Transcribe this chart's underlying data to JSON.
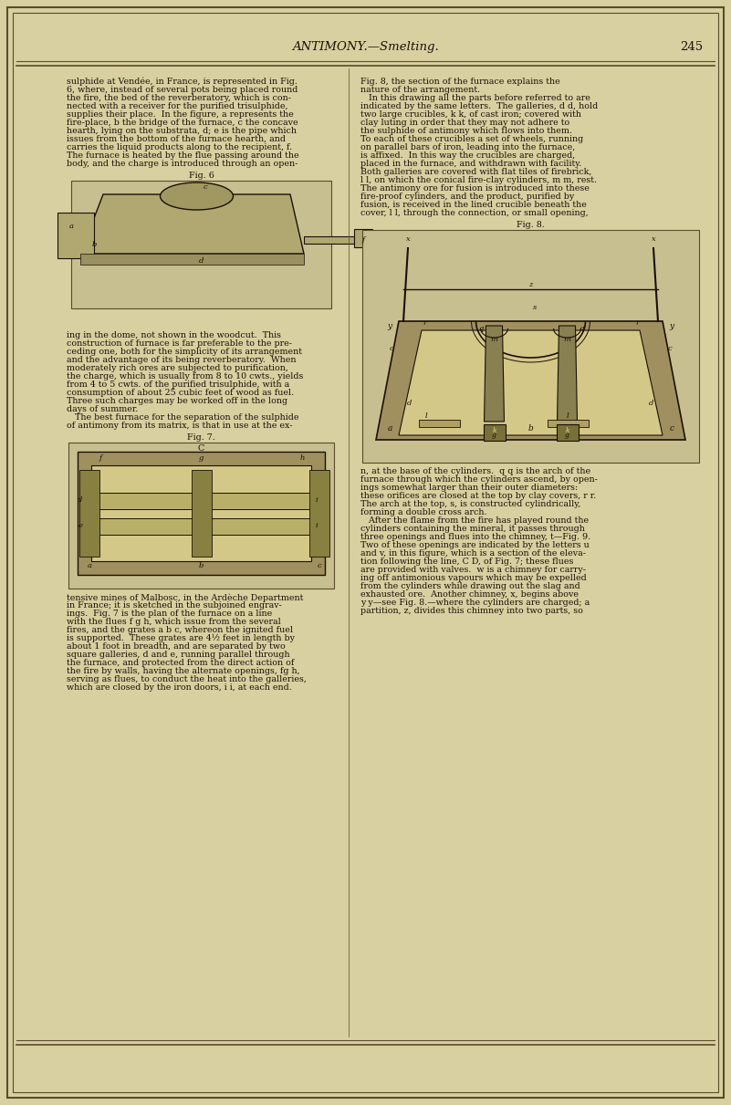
{
  "bg_color": "#d8d0a0",
  "page_bg": "#d8d0a0",
  "border_color": "#5a4a2a",
  "text_color": "#1a1008",
  "header_text": "ANTIMONY.—Smelting.",
  "page_number": "245",
  "header_fontsize": 9.5,
  "body_fontsize": 6.8,
  "fig6_caption": "Fig. 6",
  "fig7_caption": "Fig. 7.",
  "fig8_caption": "Fig. 8.",
  "col1_text": [
    "sulphide at Vendée, in France, is represented in Fig.",
    "6, where, instead of several pots being placed round",
    "the fire, the bed of the reverberatory, which is con-",
    "nected with a receiver for the purified trisulphide,",
    "supplies their place.  In the figure, a represents the",
    "fire-place, b the bridge of the furnace, c the concave",
    "hearth, lying on the substrata, d; e is the pipe which",
    "issues from the bottom of the furnace hearth, and",
    "carries the liquid products along to the recipient, f.",
    "The furnace is heated by the flue passing around the",
    "body, and the charge is introduced through an open-"
  ],
  "col1_after_fig6": [
    "ing in the dome, not shown in the woodcut.  This",
    "construction of furnace is far preferable to the pre-",
    "ceding one, both for the simplicity of its arrangement",
    "and the advantage of its being reverberatory.  When",
    "moderately rich ores are subjected to purification,",
    "the charge, which is usually from 8 to 10 cwts., yields",
    "from 4 to 5 cwts. of the purified trisulphide, with a",
    "consumption of about 25 cubic feet of wood as fuel.",
    "Three such charges may be worked off in the long",
    "days of summer.",
    "   The best furnace for the separation of the sulphide",
    "of antimony from its matrix, is that in use at the ex-"
  ],
  "col1_after_fig7": [
    "tensive mines of Malbosc, in the Ardèche Department",
    "in France; it is sketched in the subjoined engrav-",
    "ings.  Fig. 7 is the plan of the furnace on a line",
    "with the flues f g h, which issue from the several",
    "fires, and the grates a b c, whereon the ignited fuel",
    "is supported.  These grates are 4½ feet in length by",
    "about 1 foot in breadth, and are separated by two",
    "square galleries, d and e, running parallel through",
    "the furnace, and protected from the direct action of",
    "the fire by walls, having the alternate openings, fg h,",
    "serving as flues, to conduct the heat into the galleries,",
    "which are closed by the iron doors, i i, at each end."
  ],
  "col2_text": [
    "Fig. 8, the section of the furnace explains the",
    "nature of the arrangement.",
    "   In this drawing all the parts before referred to are",
    "indicated by the same letters.  The galleries, d d, hold",
    "two large crucibles, k k, of cast iron; covered with",
    "clay luting in order that they may not adhere to",
    "the sulphide of antimony which flows into them.",
    "To each of these crucibles a set of wheels, running",
    "on parallel bars of iron, leading into the furnace,",
    "is affixed.  In this way the crucibles are charged,",
    "placed in the furnace, and withdrawn with facility.",
    "Both galleries are covered with flat tiles of firebrick,",
    "l l, on which the conical fire-clay cylinders, m m, rest.",
    "The antimony ore for fusion is introduced into these",
    "fire-proof cylinders, and the product, purified by",
    "fusion, is received in the lined crucible beneath the",
    "cover, l l, through the connection, or small opening,"
  ],
  "col2_after_fig8": [
    "n, at the base of the cylinders.  q q is the arch of the",
    "furnace through which the cylinders ascend, by open-",
    "ings somewhat larger than their outer diameters:",
    "these orifices are closed at the top by clay covers, r r.",
    "The arch at the top, s, is constructed cylindrically,",
    "forming a double cross arch.",
    "   After the flame from the fire has played round the",
    "cylinders containing the mineral, it passes through",
    "three openings and flues into the chimney, t—Fig. 9.",
    "Two of these openings are indicated by the letters u",
    "and v, in this figure, which is a section of the eleva-",
    "tion following the line, C D, of Fig. 7; these flues",
    "are provided with valves.  w is a chimney for carry-",
    "ing off antimonious vapours which may be expelled",
    "from the cylinders while drawing out the slag and",
    "exhausted ore.  Another chimney, x, begins above",
    "y y—see Fig. 8.—where the cylinders are charged; a",
    "partition, z, divides this chimney into two parts, so"
  ]
}
